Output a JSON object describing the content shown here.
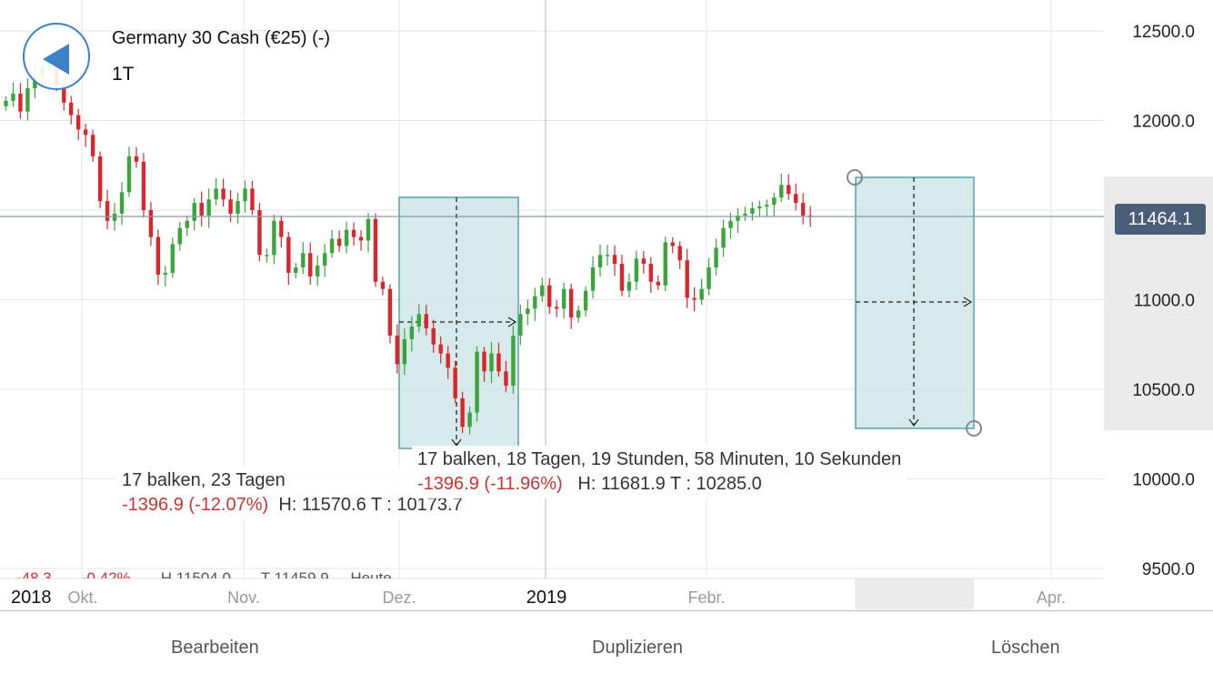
{
  "instrument": {
    "title": "Germany 30 Cash (€25) (-)",
    "timeframe": "1T"
  },
  "current_price": "11464.1",
  "measure_left": {
    "line1": "17 balken, 23 Tagen",
    "change": "-1396.9 (-12.07%)",
    "hl": "H: 11570.6 T : 10173.7"
  },
  "measure_right": {
    "line1": "17 balken, 18 Tagen, 19 Stunden, 58 Minuten, 10 Sekunden",
    "change": "-1396.9 (-11.96%)",
    "hl": "H: 11681.9 T : 10285.0"
  },
  "partial_legend": {
    "change": "-48.3",
    "pct": "-0.42%",
    "high": "H 11504.0",
    "low": "T 11459.9",
    "label": "Heute"
  },
  "toolbar": {
    "edit": "Bearbeiten",
    "duplicate": "Duplizieren",
    "delete": "Löschen"
  },
  "colors": {
    "up": "#3aa53a",
    "down": "#d9262c",
    "box": "#cfe6e8",
    "box_border": "#5aa3a8",
    "price_tag": "#4b5e78",
    "back": "#3b82c6"
  },
  "chart_data": {
    "type": "candlestick",
    "ylim": [
      9500,
      12500
    ],
    "yticks": [
      "12500.0",
      "12000.0",
      "11500.0",
      "11000.0",
      "10500.0",
      "10000.0",
      "9500.0"
    ],
    "ytick_values": [
      12500,
      12000,
      11500,
      11000,
      10500,
      10000,
      9500
    ],
    "xticks": [
      "2018",
      "Okt.",
      "Nov.",
      "Dez.",
      "2019",
      "Febr.",
      "Apr."
    ],
    "grid": true,
    "closes": [
      12110,
      12150,
      12050,
      12180,
      12250,
      12300,
      12350,
      12200,
      12100,
      12030,
      11950,
      11920,
      11800,
      11550,
      11440,
      11480,
      11600,
      11800,
      11770,
      11500,
      11350,
      11140,
      11150,
      11310,
      11400,
      11440,
      11540,
      11470,
      11560,
      11620,
      11560,
      11480,
      11550,
      11620,
      11500,
      11250,
      11250,
      11440,
      11350,
      11150,
      11180,
      11260,
      11130,
      11190,
      11260,
      11340,
      11300,
      11390,
      11350,
      11330,
      11450,
      11100,
      11060,
      10800,
      10640,
      10780,
      10850,
      10920,
      10840,
      10750,
      10700,
      10620,
      10450,
      10290,
      10370,
      10710,
      10600,
      10700,
      10600,
      10520,
      10800,
      10920,
      10950,
      11020,
      11080,
      10960,
      10950,
      11060,
      10900,
      10940,
      11050,
      11180,
      11250,
      11250,
      11200,
      11050,
      11100,
      11230,
      11200,
      11100,
      11080,
      11320,
      11300,
      11220,
      11010,
      11000,
      11060,
      11180,
      11290,
      11400,
      11440,
      11470,
      11480,
      11510,
      11520,
      11530,
      11570,
      11640,
      11590,
      11540,
      11470,
      11464
    ]
  }
}
